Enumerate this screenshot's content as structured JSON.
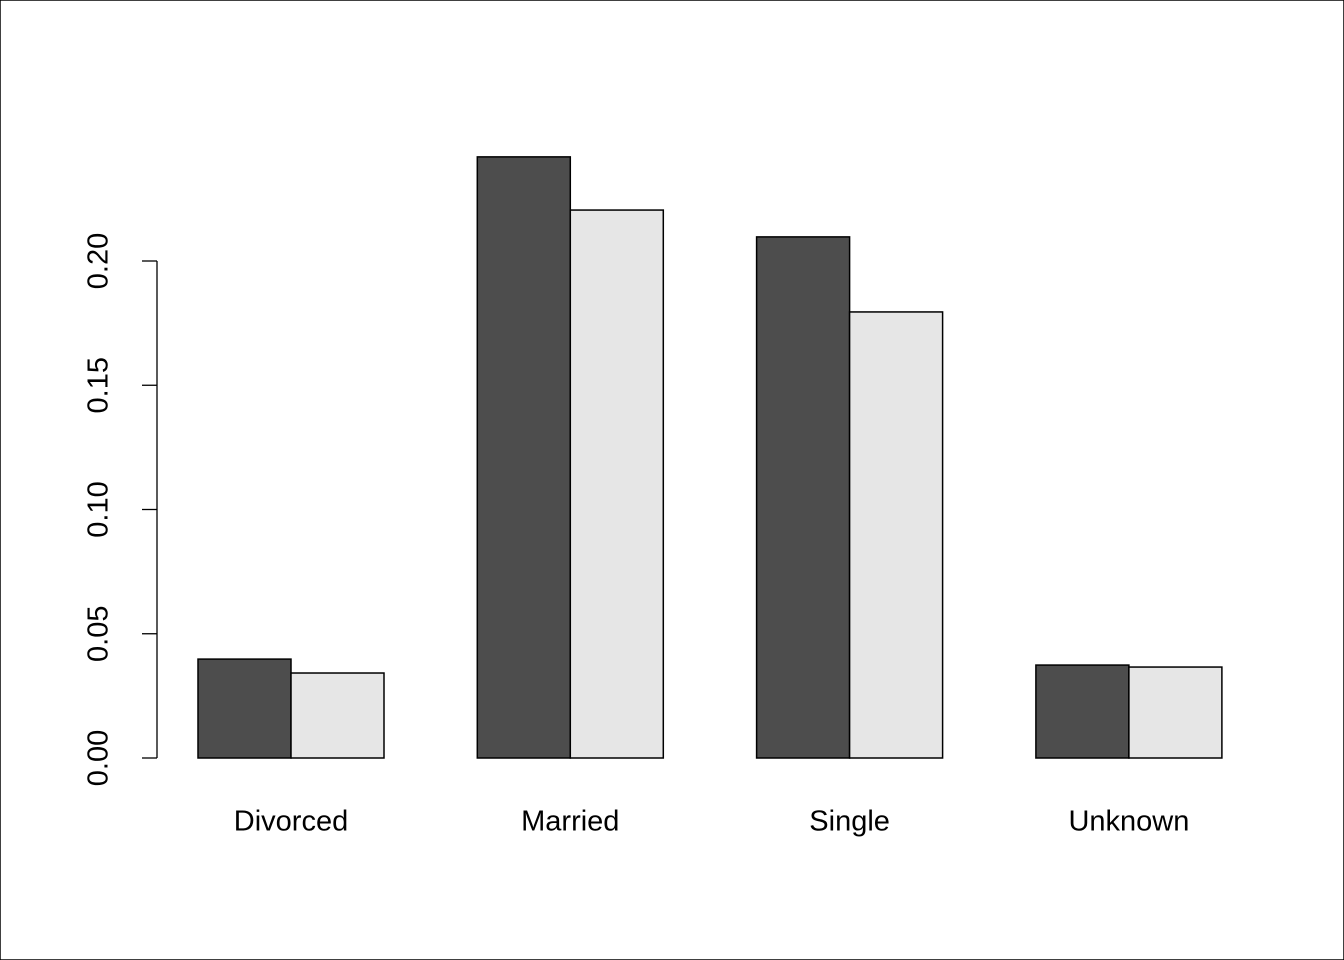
{
  "chart_data": {
    "type": "bar",
    "categories": [
      "Divorced",
      "Married",
      "Single",
      "Unknown"
    ],
    "series": [
      {
        "color": "#4d4d4d",
        "values": [
          0.0398,
          0.2419,
          0.2097,
          0.0374
        ]
      },
      {
        "color": "#e6e6e6",
        "values": [
          0.0342,
          0.2205,
          0.1795,
          0.0366
        ]
      }
    ],
    "ylim": [
      0,
      0.25
    ],
    "yticks": [
      {
        "value": 0,
        "label": "0.00"
      },
      0.05,
      {
        "value": 0.1,
        "label": "0.10"
      },
      0.15,
      {
        "value": 0.2,
        "label": "0.20"
      }
    ]
  }
}
